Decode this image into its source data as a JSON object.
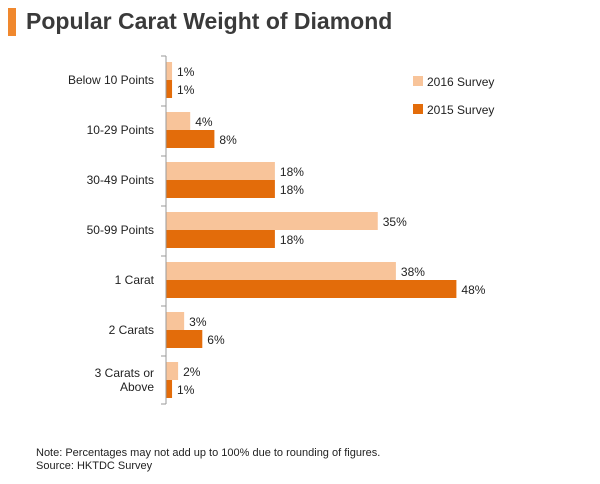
{
  "header": {
    "title": "Popular Carat Weight of Diamond"
  },
  "notes": {
    "note": "Note: Percentages may not add up to 100% due to rounding of figures.",
    "source": "Source: HKTDC Survey"
  },
  "colors": {
    "accent": "#f0882e",
    "series_2016": "#f8c49a",
    "series_2015": "#e36c0a",
    "axis": "#9a9a9a"
  },
  "chart_data": {
    "type": "bar",
    "orientation": "horizontal",
    "title": "Popular Carat Weight of Diamond",
    "categories": [
      [
        "Below 10 Points"
      ],
      [
        "10-29 Points"
      ],
      [
        "30-49 Points"
      ],
      [
        "50-99 Points"
      ],
      [
        "1 Carat"
      ],
      [
        "2 Carats"
      ],
      [
        "3 Carats or",
        "Above"
      ]
    ],
    "series": [
      {
        "name": "2016 Survey",
        "values": [
          1,
          4,
          18,
          35,
          38,
          3,
          2
        ],
        "labels": [
          "1%",
          "4%",
          "18%",
          "35%",
          "38%",
          "3%",
          "2%"
        ]
      },
      {
        "name": "2015 Survey",
        "values": [
          1,
          8,
          18,
          18,
          48,
          6,
          1
        ],
        "labels": [
          "1%",
          "8%",
          "18%",
          "18%",
          "48%",
          "6%",
          "1%"
        ]
      }
    ],
    "xlim": [
      0,
      48
    ],
    "legend": "right",
    "grid": false
  }
}
